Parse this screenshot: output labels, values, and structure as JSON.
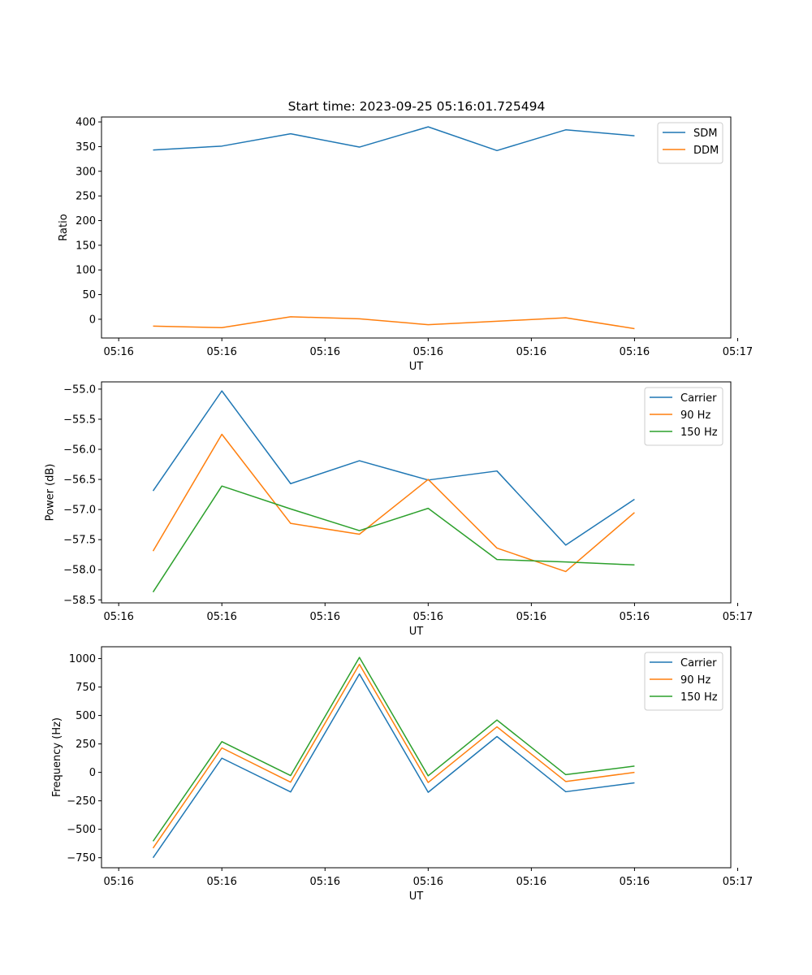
{
  "figure_title": "Start time: 2023-09-25 05:16:01.725494",
  "colors": {
    "blue": "#1f77b4",
    "orange": "#ff7f0e",
    "green": "#2ca02c",
    "axis": "#000000",
    "legend_border": "#cccccc"
  },
  "chart_data": [
    {
      "type": "line",
      "title": "Start time: 2023-09-25 05:16:01.725494",
      "xlabel": "UT",
      "ylabel": "Ratio",
      "x": [
        1,
        2,
        3,
        4,
        5,
        6,
        7,
        8
      ],
      "xlim": [
        0.25,
        9.4
      ],
      "x_ticks": [
        0.5,
        2,
        3.5,
        5,
        6.5,
        8,
        9.5
      ],
      "x_tick_labels": [
        "05:16",
        "05:16",
        "05:16",
        "05:16",
        "05:16",
        "05:16",
        "05:17"
      ],
      "ylim": [
        -38,
        410
      ],
      "y_ticks": [
        400,
        350,
        300,
        250,
        200,
        150,
        100,
        50,
        0
      ],
      "y_tick_labels": [
        "400",
        "350",
        "300",
        "250",
        "200",
        "150",
        "100",
        "50",
        "0"
      ],
      "legend_position": "top-right",
      "series": [
        {
          "name": "SDM",
          "color": "#1f77b4",
          "values": [
            343,
            351,
            376,
            349,
            390,
            342,
            384,
            372
          ]
        },
        {
          "name": "DDM",
          "color": "#ff7f0e",
          "values": [
            -14,
            -17,
            5,
            1,
            -11,
            -4,
            3,
            -19
          ]
        }
      ]
    },
    {
      "type": "line",
      "title": "",
      "xlabel": "UT",
      "ylabel": "Power (dB)",
      "x": [
        1,
        2,
        3,
        4,
        5,
        6,
        7,
        8
      ],
      "xlim": [
        0.25,
        9.4
      ],
      "x_ticks": [
        0.5,
        2,
        3.5,
        5,
        6.5,
        8,
        9.5
      ],
      "x_tick_labels": [
        "05:16",
        "05:16",
        "05:16",
        "05:16",
        "05:16",
        "05:16",
        "05:17"
      ],
      "ylim": [
        -58.55,
        -54.88
      ],
      "y_ticks": [
        -55.0,
        -55.5,
        -56.0,
        -56.5,
        -57.0,
        -57.5,
        -58.0,
        -58.5
      ],
      "y_tick_labels": [
        "−55.0",
        "−55.5",
        "−56.0",
        "−56.5",
        "−57.0",
        "−57.5",
        "−58.0",
        "−58.5"
      ],
      "legend_position": "top-right",
      "series": [
        {
          "name": "Carrier",
          "color": "#1f77b4",
          "values": [
            -56.69,
            -55.03,
            -56.57,
            -56.19,
            -56.51,
            -56.36,
            -57.59,
            -56.83
          ]
        },
        {
          "name": "90 Hz",
          "color": "#ff7f0e",
          "values": [
            -57.69,
            -55.75,
            -57.23,
            -57.41,
            -56.5,
            -57.64,
            -58.03,
            -57.05
          ]
        },
        {
          "name": "150 Hz",
          "color": "#2ca02c",
          "values": [
            -58.37,
            -56.61,
            -56.99,
            -57.35,
            -56.98,
            -57.83,
            -57.87,
            -57.92
          ]
        }
      ]
    },
    {
      "type": "line",
      "title": "",
      "xlabel": "UT",
      "ylabel": "Frequency (Hz)",
      "x": [
        1,
        2,
        3,
        4,
        5,
        6,
        7,
        8
      ],
      "xlim": [
        0.25,
        9.4
      ],
      "x_ticks": [
        0.5,
        2,
        3.5,
        5,
        6.5,
        8,
        9.5
      ],
      "x_tick_labels": [
        "05:16",
        "05:16",
        "05:16",
        "05:16",
        "05:16",
        "05:16",
        "05:17"
      ],
      "ylim": [
        -838,
        1104
      ],
      "y_ticks": [
        1000,
        750,
        500,
        250,
        0,
        -250,
        -500,
        -750
      ],
      "y_tick_labels": [
        "1000",
        "750",
        "500",
        "250",
        "0",
        "−250",
        "−500",
        "−750"
      ],
      "legend_position": "top-right",
      "series": [
        {
          "name": "Carrier",
          "color": "#1f77b4",
          "values": [
            -750,
            125,
            -172,
            865,
            -175,
            315,
            -170,
            -92
          ]
        },
        {
          "name": "90 Hz",
          "color": "#ff7f0e",
          "values": [
            -665,
            215,
            -86,
            950,
            -89,
            400,
            -80,
            0
          ]
        },
        {
          "name": "150 Hz",
          "color": "#2ca02c",
          "values": [
            -605,
            270,
            -28,
            1010,
            -30,
            460,
            -20,
            55
          ]
        }
      ]
    }
  ]
}
